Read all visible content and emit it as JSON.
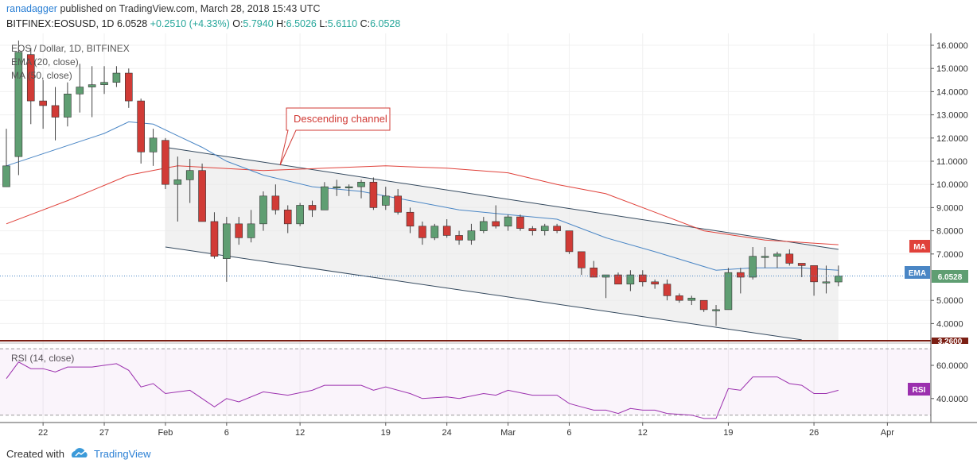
{
  "header": {
    "author": "ranadagger",
    "published_text": "published on TradingView.com, March 28, 2018 15:43 UTC",
    "symbol": "BITFINEX:EOSUSD, 1D",
    "last": "6.0528",
    "change": "+0.2510 (+4.33%)",
    "o_label": "O:",
    "o": "5.7940",
    "h_label": "H:",
    "h": "6.5026",
    "l_label": "L:",
    "l": "5.6110",
    "c_label": "C:",
    "c": "6.0528"
  },
  "legend": {
    "title": "EOS / Dollar, 1D, BITFINEX",
    "ema": "EMA (20, close)",
    "ma": "MA (50, close)",
    "rsi": "RSI (14, close)"
  },
  "annotation": "Descending channel",
  "badges": {
    "ma": "MA",
    "ema": "EMA",
    "price": "6.0528",
    "support": "3.2600",
    "rsi": "RSI"
  },
  "footer": {
    "created": "Created with",
    "brand": "TradingView"
  },
  "colors": {
    "up": "#5f9e72",
    "down": "#d13b36",
    "ema": "#4a86c5",
    "ma": "#e0413a",
    "rsi": "#9b2fae",
    "channel": "#34495e"
  },
  "chart_data": {
    "type": "candlestick",
    "price_axis": {
      "ylim": [
        3.4,
        16.3
      ],
      "ticks": [
        "16.0000",
        "15.0000",
        "14.0000",
        "13.0000",
        "12.0000",
        "11.0000",
        "10.0000",
        "9.0000",
        "8.0000",
        "7.0000",
        "5.0000",
        "4.0000"
      ]
    },
    "rsi_axis": {
      "ylim": [
        28,
        72
      ],
      "ticks": [
        "60.0000",
        "40.0000"
      ],
      "bands": [
        30,
        70
      ]
    },
    "x_ticks": [
      "22",
      "27",
      "Feb",
      "6",
      "12",
      "19",
      "24",
      "Mar",
      "6",
      "12",
      "19",
      "26",
      "Apr"
    ],
    "candles": [
      {
        "date": "2018-01-19",
        "o": 9.9,
        "h": 12.4,
        "l": 9.9,
        "c": 10.8
      },
      {
        "date": "2018-01-20",
        "o": 11.2,
        "h": 16.2,
        "l": 10.4,
        "c": 15.7
      },
      {
        "date": "2018-01-21",
        "o": 15.6,
        "h": 15.9,
        "l": 12.6,
        "c": 13.6
      },
      {
        "date": "2018-01-22",
        "o": 13.6,
        "h": 14.5,
        "l": 12.4,
        "c": 13.4
      },
      {
        "date": "2018-01-23",
        "o": 13.4,
        "h": 14.2,
        "l": 11.9,
        "c": 12.9
      },
      {
        "date": "2018-01-24",
        "o": 12.9,
        "h": 14.4,
        "l": 12.5,
        "c": 13.9
      },
      {
        "date": "2018-01-25",
        "o": 13.9,
        "h": 15.2,
        "l": 13.1,
        "c": 14.2
      },
      {
        "date": "2018-01-26",
        "o": 14.2,
        "h": 15.1,
        "l": 12.9,
        "c": 14.3
      },
      {
        "date": "2018-01-27",
        "o": 14.3,
        "h": 15.1,
        "l": 13.9,
        "c": 14.4
      },
      {
        "date": "2018-01-28",
        "o": 14.4,
        "h": 15.1,
        "l": 14.2,
        "c": 14.8
      },
      {
        "date": "2018-01-29",
        "o": 14.8,
        "h": 15.0,
        "l": 13.3,
        "c": 13.6
      },
      {
        "date": "2018-01-30",
        "o": 13.6,
        "h": 13.7,
        "l": 10.9,
        "c": 11.4
      },
      {
        "date": "2018-01-31",
        "o": 11.4,
        "h": 12.4,
        "l": 10.8,
        "c": 12.0
      },
      {
        "date": "2018-02-01",
        "o": 11.9,
        "h": 12.0,
        "l": 9.8,
        "c": 10.0
      },
      {
        "date": "2018-02-02",
        "o": 10.0,
        "h": 11.2,
        "l": 8.4,
        "c": 10.2
      },
      {
        "date": "2018-02-03",
        "o": 10.2,
        "h": 11.1,
        "l": 9.2,
        "c": 10.6
      },
      {
        "date": "2018-02-04",
        "o": 10.6,
        "h": 10.9,
        "l": 8.4,
        "c": 8.4
      },
      {
        "date": "2018-02-05",
        "o": 8.4,
        "h": 8.8,
        "l": 6.8,
        "c": 6.9
      },
      {
        "date": "2018-02-06",
        "o": 6.8,
        "h": 8.6,
        "l": 5.8,
        "c": 8.3
      },
      {
        "date": "2018-02-07",
        "o": 8.3,
        "h": 8.6,
        "l": 7.4,
        "c": 7.7
      },
      {
        "date": "2018-02-08",
        "o": 7.7,
        "h": 8.9,
        "l": 7.5,
        "c": 8.3
      },
      {
        "date": "2018-02-09",
        "o": 8.3,
        "h": 9.7,
        "l": 8.0,
        "c": 9.5
      },
      {
        "date": "2018-02-10",
        "o": 9.5,
        "h": 10.0,
        "l": 8.7,
        "c": 8.9
      },
      {
        "date": "2018-02-11",
        "o": 8.9,
        "h": 9.1,
        "l": 7.9,
        "c": 8.3
      },
      {
        "date": "2018-02-12",
        "o": 8.3,
        "h": 9.2,
        "l": 8.2,
        "c": 9.1
      },
      {
        "date": "2018-02-13",
        "o": 9.1,
        "h": 9.3,
        "l": 8.6,
        "c": 8.9
      },
      {
        "date": "2018-02-14",
        "o": 8.9,
        "h": 10.1,
        "l": 8.9,
        "c": 9.9
      },
      {
        "date": "2018-02-15",
        "o": 9.9,
        "h": 10.2,
        "l": 9.5,
        "c": 9.9
      },
      {
        "date": "2018-02-16",
        "o": 9.9,
        "h": 10.0,
        "l": 9.5,
        "c": 9.9
      },
      {
        "date": "2018-02-17",
        "o": 9.9,
        "h": 10.2,
        "l": 9.4,
        "c": 10.1
      },
      {
        "date": "2018-02-18",
        "o": 10.1,
        "h": 10.3,
        "l": 8.9,
        "c": 9.0
      },
      {
        "date": "2018-02-19",
        "o": 9.1,
        "h": 9.9,
        "l": 8.9,
        "c": 9.5
      },
      {
        "date": "2018-02-20",
        "o": 9.5,
        "h": 9.8,
        "l": 8.7,
        "c": 8.8
      },
      {
        "date": "2018-02-21",
        "o": 8.8,
        "h": 9.0,
        "l": 7.9,
        "c": 8.2
      },
      {
        "date": "2018-02-22",
        "o": 8.2,
        "h": 8.4,
        "l": 7.4,
        "c": 7.7
      },
      {
        "date": "2018-02-23",
        "o": 7.7,
        "h": 8.3,
        "l": 7.6,
        "c": 8.2
      },
      {
        "date": "2018-02-24",
        "o": 8.2,
        "h": 8.5,
        "l": 7.7,
        "c": 7.8
      },
      {
        "date": "2018-02-25",
        "o": 7.8,
        "h": 8.0,
        "l": 7.4,
        "c": 7.6
      },
      {
        "date": "2018-02-26",
        "o": 7.6,
        "h": 8.3,
        "l": 7.4,
        "c": 8.0
      },
      {
        "date": "2018-02-27",
        "o": 8.0,
        "h": 8.6,
        "l": 7.9,
        "c": 8.4
      },
      {
        "date": "2018-02-28",
        "o": 8.4,
        "h": 9.1,
        "l": 8.1,
        "c": 8.2
      },
      {
        "date": "2018-03-01",
        "o": 8.2,
        "h": 8.7,
        "l": 8.0,
        "c": 8.6
      },
      {
        "date": "2018-03-02",
        "o": 8.6,
        "h": 8.7,
        "l": 8.0,
        "c": 8.1
      },
      {
        "date": "2018-03-03",
        "o": 8.1,
        "h": 8.2,
        "l": 7.8,
        "c": 8.0
      },
      {
        "date": "2018-03-04",
        "o": 8.0,
        "h": 8.3,
        "l": 7.8,
        "c": 8.2
      },
      {
        "date": "2018-03-05",
        "o": 8.2,
        "h": 8.3,
        "l": 7.9,
        "c": 8.0
      },
      {
        "date": "2018-03-06",
        "o": 8.0,
        "h": 8.0,
        "l": 7.0,
        "c": 7.1
      },
      {
        "date": "2018-03-07",
        "o": 7.1,
        "h": 7.1,
        "l": 6.1,
        "c": 6.4
      },
      {
        "date": "2018-03-08",
        "o": 6.4,
        "h": 6.7,
        "l": 6.0,
        "c": 6.0
      },
      {
        "date": "2018-03-09",
        "o": 6.0,
        "h": 6.1,
        "l": 5.1,
        "c": 6.1
      },
      {
        "date": "2018-03-10",
        "o": 6.1,
        "h": 6.2,
        "l": 5.7,
        "c": 5.7
      },
      {
        "date": "2018-03-11",
        "o": 5.7,
        "h": 6.3,
        "l": 5.4,
        "c": 6.1
      },
      {
        "date": "2018-03-12",
        "o": 6.1,
        "h": 6.3,
        "l": 5.6,
        "c": 5.8
      },
      {
        "date": "2018-03-13",
        "o": 5.8,
        "h": 5.9,
        "l": 5.5,
        "c": 5.7
      },
      {
        "date": "2018-03-14",
        "o": 5.7,
        "h": 5.9,
        "l": 5.0,
        "c": 5.2
      },
      {
        "date": "2018-03-15",
        "o": 5.2,
        "h": 5.3,
        "l": 4.9,
        "c": 5.0
      },
      {
        "date": "2018-03-16",
        "o": 5.0,
        "h": 5.2,
        "l": 4.8,
        "c": 5.1
      },
      {
        "date": "2018-03-17",
        "o": 5.0,
        "h": 5.0,
        "l": 4.5,
        "c": 4.6
      },
      {
        "date": "2018-03-18",
        "o": 4.6,
        "h": 4.8,
        "l": 3.9,
        "c": 4.6
      },
      {
        "date": "2018-03-19",
        "o": 4.6,
        "h": 6.4,
        "l": 4.6,
        "c": 6.2
      },
      {
        "date": "2018-03-20",
        "o": 6.2,
        "h": 6.4,
        "l": 5.3,
        "c": 6.0
      },
      {
        "date": "2018-03-21",
        "o": 6.0,
        "h": 7.3,
        "l": 5.9,
        "c": 6.9
      },
      {
        "date": "2018-03-22",
        "o": 6.9,
        "h": 7.3,
        "l": 6.4,
        "c": 6.9
      },
      {
        "date": "2018-03-23",
        "o": 6.9,
        "h": 7.1,
        "l": 6.4,
        "c": 7.0
      },
      {
        "date": "2018-03-24",
        "o": 7.0,
        "h": 7.2,
        "l": 6.5,
        "c": 6.6
      },
      {
        "date": "2018-03-25",
        "o": 6.6,
        "h": 6.6,
        "l": 6.0,
        "c": 6.5
      },
      {
        "date": "2018-03-26",
        "o": 6.5,
        "h": 6.5,
        "l": 5.2,
        "c": 5.8
      },
      {
        "date": "2018-03-27",
        "o": 5.8,
        "h": 6.5,
        "l": 5.3,
        "c": 5.8
      },
      {
        "date": "2018-03-28",
        "o": 5.794,
        "h": 6.5026,
        "l": 5.611,
        "c": 6.0528
      }
    ],
    "ema20": [
      {
        "date": "2018-01-19",
        "v": 10.8
      },
      {
        "date": "2018-01-27",
        "v": 12.2
      },
      {
        "date": "2018-01-29",
        "v": 12.7
      },
      {
        "date": "2018-01-31",
        "v": 12.6
      },
      {
        "date": "2018-02-02",
        "v": 12.1
      },
      {
        "date": "2018-02-04",
        "v": 11.6
      },
      {
        "date": "2018-02-06",
        "v": 11.0
      },
      {
        "date": "2018-02-09",
        "v": 10.4
      },
      {
        "date": "2018-02-13",
        "v": 9.9
      },
      {
        "date": "2018-02-17",
        "v": 9.7
      },
      {
        "date": "2018-02-21",
        "v": 9.3
      },
      {
        "date": "2018-02-25",
        "v": 8.9
      },
      {
        "date": "2018-03-01",
        "v": 8.7
      },
      {
        "date": "2018-03-05",
        "v": 8.5
      },
      {
        "date": "2018-03-09",
        "v": 7.7
      },
      {
        "date": "2018-03-13",
        "v": 7.1
      },
      {
        "date": "2018-03-18",
        "v": 6.3
      },
      {
        "date": "2018-03-21",
        "v": 6.4
      },
      {
        "date": "2018-03-25",
        "v": 6.4
      },
      {
        "date": "2018-03-28",
        "v": 6.3
      }
    ],
    "ma50": [
      {
        "date": "2018-01-19",
        "v": 8.3
      },
      {
        "date": "2018-01-24",
        "v": 9.3
      },
      {
        "date": "2018-01-29",
        "v": 10.4
      },
      {
        "date": "2018-02-02",
        "v": 10.8
      },
      {
        "date": "2018-02-09",
        "v": 10.6
      },
      {
        "date": "2018-02-14",
        "v": 10.7
      },
      {
        "date": "2018-02-19",
        "v": 10.8
      },
      {
        "date": "2018-02-24",
        "v": 10.7
      },
      {
        "date": "2018-03-01",
        "v": 10.5
      },
      {
        "date": "2018-03-05",
        "v": 10.0
      },
      {
        "date": "2018-03-09",
        "v": 9.6
      },
      {
        "date": "2018-03-13",
        "v": 8.8
      },
      {
        "date": "2018-03-17",
        "v": 8.0
      },
      {
        "date": "2018-03-22",
        "v": 7.6
      },
      {
        "date": "2018-03-28",
        "v": 7.4
      }
    ],
    "channel": {
      "upper": [
        {
          "date": "2018-02-01",
          "v": 11.6
        },
        {
          "date": "2018-03-28",
          "v": 7.2
        }
      ],
      "lower": [
        {
          "date": "2018-02-01",
          "v": 7.3
        },
        {
          "date": "2018-03-25",
          "v": 3.3
        }
      ]
    },
    "support_level": 3.26,
    "rsi14": [
      {
        "date": "2018-01-19",
        "v": 52
      },
      {
        "date": "2018-01-20",
        "v": 62
      },
      {
        "date": "2018-01-21",
        "v": 58
      },
      {
        "date": "2018-01-22",
        "v": 58
      },
      {
        "date": "2018-01-23",
        "v": 56
      },
      {
        "date": "2018-01-24",
        "v": 59
      },
      {
        "date": "2018-01-26",
        "v": 59
      },
      {
        "date": "2018-01-28",
        "v": 61
      },
      {
        "date": "2018-01-29",
        "v": 57
      },
      {
        "date": "2018-01-30",
        "v": 47
      },
      {
        "date": "2018-01-31",
        "v": 49
      },
      {
        "date": "2018-02-01",
        "v": 43
      },
      {
        "date": "2018-02-03",
        "v": 45
      },
      {
        "date": "2018-02-04",
        "v": 40
      },
      {
        "date": "2018-02-05",
        "v": 35
      },
      {
        "date": "2018-02-06",
        "v": 40
      },
      {
        "date": "2018-02-07",
        "v": 38
      },
      {
        "date": "2018-02-09",
        "v": 44
      },
      {
        "date": "2018-02-11",
        "v": 42
      },
      {
        "date": "2018-02-13",
        "v": 45
      },
      {
        "date": "2018-02-14",
        "v": 48
      },
      {
        "date": "2018-02-17",
        "v": 48
      },
      {
        "date": "2018-02-18",
        "v": 45
      },
      {
        "date": "2018-02-19",
        "v": 47
      },
      {
        "date": "2018-02-21",
        "v": 43
      },
      {
        "date": "2018-02-22",
        "v": 40
      },
      {
        "date": "2018-02-24",
        "v": 41
      },
      {
        "date": "2018-02-25",
        "v": 40
      },
      {
        "date": "2018-02-27",
        "v": 43
      },
      {
        "date": "2018-02-28",
        "v": 42
      },
      {
        "date": "2018-03-01",
        "v": 45
      },
      {
        "date": "2018-03-03",
        "v": 42
      },
      {
        "date": "2018-03-05",
        "v": 42
      },
      {
        "date": "2018-03-06",
        "v": 37
      },
      {
        "date": "2018-03-07",
        "v": 35
      },
      {
        "date": "2018-03-08",
        "v": 33
      },
      {
        "date": "2018-03-09",
        "v": 33
      },
      {
        "date": "2018-03-10",
        "v": 31
      },
      {
        "date": "2018-03-11",
        "v": 34
      },
      {
        "date": "2018-03-12",
        "v": 33
      },
      {
        "date": "2018-03-13",
        "v": 33
      },
      {
        "date": "2018-03-14",
        "v": 31
      },
      {
        "date": "2018-03-16",
        "v": 30
      },
      {
        "date": "2018-03-17",
        "v": 28
      },
      {
        "date": "2018-03-18",
        "v": 28
      },
      {
        "date": "2018-03-19",
        "v": 46
      },
      {
        "date": "2018-03-20",
        "v": 45
      },
      {
        "date": "2018-03-21",
        "v": 53
      },
      {
        "date": "2018-03-23",
        "v": 53
      },
      {
        "date": "2018-03-24",
        "v": 49
      },
      {
        "date": "2018-03-25",
        "v": 48
      },
      {
        "date": "2018-03-26",
        "v": 43
      },
      {
        "date": "2018-03-27",
        "v": 43
      },
      {
        "date": "2018-03-28",
        "v": 45
      }
    ]
  }
}
